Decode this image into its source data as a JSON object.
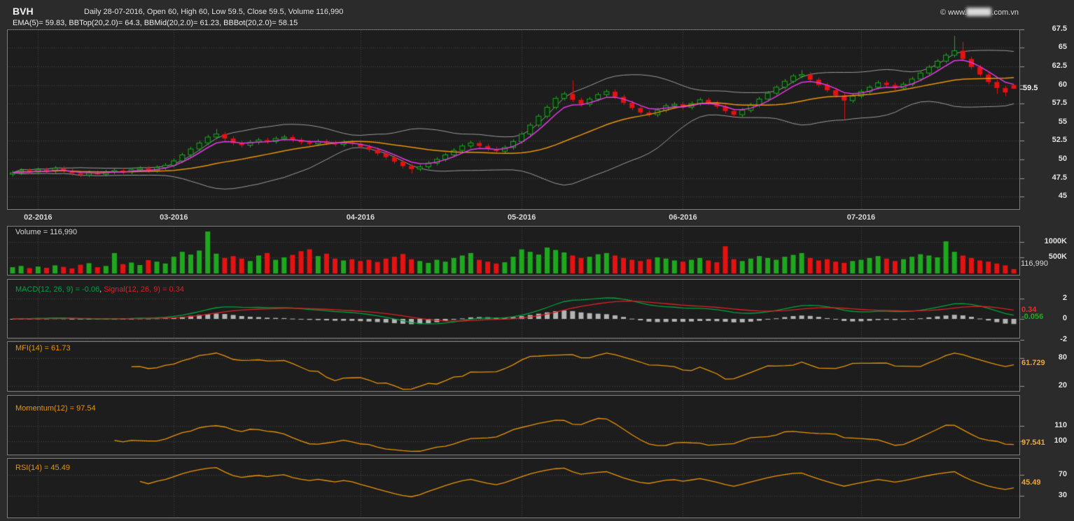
{
  "header": {
    "symbol": "BVH",
    "summary": "Daily 28-07-2016, Open 60, High 60, Low 59.5, Close 59.5, Volume 116,990",
    "copyright": {
      "prefix": "© www.",
      "suffix": ".com.vn",
      "middle_redacted": true
    }
  },
  "panels": {
    "price": {
      "legend": "EMA(5)= 59.83, BBTop(20,2.0)= 64.3, BBMid(20,2.0)= 61.23, BBBot(20,2.0)= 58.15",
      "last_label": "59.5"
    },
    "volume": {
      "legend": "Volume = 116,990",
      "last_label": "116,990"
    },
    "macd": {
      "legend_macd": "MACD(12, 26, 9) = -0.06",
      "legend_sep": ", ",
      "legend_signal": "Signal(12, 26, 9) = 0.34",
      "signal_last_label": "0.34",
      "macd_last_label": "-0.056"
    },
    "mfi": {
      "legend": "MFI(14) = 61.73",
      "last_label": "61.729"
    },
    "momentum": {
      "legend": "Momentum(12) = 97.54",
      "last_label": "97.541"
    },
    "rsi": {
      "legend": "RSI(14) = 45.49",
      "last_label": "45.49"
    }
  },
  "colors": {
    "page_bg": "#2b2b2b",
    "panel_bg": "#1d1d1d",
    "border": "#7e7e7e",
    "grid": "#454545",
    "up": "#1fa81f",
    "up_fill": "#0e2912",
    "down": "#e51212",
    "ema5": "#e23ae2",
    "bb_band": "#9b9b9b",
    "bb_mid": "#e8940a",
    "macd_line": "#00a33e",
    "signal_line": "#dd2222",
    "histogram": "#b4b4b4",
    "indicator_line": "#e8940a",
    "axis_text": "#e2e2e2",
    "tickmark": "#9a9a9a",
    "last_price_tick": "#f0f0f0"
  },
  "chart_data": {
    "type": "candlestick",
    "title": "BVH Daily with EMA(5), Bollinger(20,2.0), Volume, MACD(12,26,9), MFI(14), Momentum(12), RSI(14)",
    "as_of": "28-07-2016",
    "last_bar": {
      "open": 60,
      "high": 60,
      "low": 59.5,
      "close": 59.5,
      "volume": 116990
    },
    "indicator_values": {
      "ema5": 59.83,
      "bbtop": 64.3,
      "bbmid": 61.23,
      "bbbot": 58.15,
      "macd": -0.06,
      "signal": 0.34,
      "mfi14": 61.729,
      "momentum12": 97.541,
      "rsi14": 45.49
    },
    "price_axis": {
      "ticks": [
        67.5,
        65,
        62.5,
        60,
        57.5,
        55,
        52.5,
        50,
        47.5,
        45
      ],
      "range": [
        43.2,
        67.6
      ],
      "last": 59.5
    },
    "volume_axis": {
      "ticks_k": [
        1000,
        500
      ],
      "tick_labels": [
        "1000K",
        "500K"
      ]
    },
    "macd_axis": {
      "ticks": [
        2,
        0,
        -2
      ]
    },
    "mfi_axis": {
      "ticks": [
        80,
        20
      ]
    },
    "momentum_axis": {
      "ticks": [
        110,
        100
      ]
    },
    "rsi_axis": {
      "ticks": [
        70,
        30
      ]
    },
    "months": [
      {
        "label": "02-2016",
        "bar": 3
      },
      {
        "label": "03-2016",
        "bar": 19
      },
      {
        "label": "04-2016",
        "bar": 41
      },
      {
        "label": "05-2016",
        "bar": 60
      },
      {
        "label": "06-2016",
        "bar": 79
      },
      {
        "label": "07-2016",
        "bar": 100
      }
    ],
    "open": [
      48.0,
      48.2,
      48.5,
      48.3,
      48.6,
      48.4,
      48.8,
      48.5,
      48.1,
      47.9,
      48.2,
      48.0,
      48.3,
      48.5,
      48.3,
      48.6,
      48.8,
      48.5,
      48.9,
      49.2,
      49.8,
      50.6,
      51.4,
      52.2,
      53.0,
      53.4,
      52.8,
      52.2,
      51.9,
      52.3,
      52.6,
      52.4,
      52.8,
      53.0,
      52.6,
      52.3,
      52.1,
      52.4,
      52.2,
      52.0,
      52.3,
      52.1,
      51.7,
      51.3,
      50.8,
      50.3,
      49.7,
      49.1,
      48.7,
      49.0,
      49.5,
      50.0,
      50.6,
      51.2,
      51.8,
      52.2,
      51.8,
      51.4,
      51.1,
      51.6,
      52.4,
      53.4,
      54.6,
      55.8,
      57.0,
      58.2,
      58.8,
      58.0,
      57.4,
      58.1,
      58.7,
      59.1,
      58.4,
      57.6,
      56.9,
      56.3,
      56.0,
      56.6,
      57.2,
      57.4,
      57.0,
      57.5,
      58.0,
      57.6,
      57.1,
      56.5,
      56.0,
      56.6,
      57.3,
      58.1,
      58.9,
      59.7,
      60.5,
      61.2,
      61.4,
      60.7,
      60.0,
      59.3,
      58.6,
      57.9,
      58.5,
      59.1,
      59.7,
      60.3,
      60.0,
      59.6,
      60.1,
      60.8,
      61.6,
      62.4,
      63.2,
      64.0,
      64.6,
      63.5,
      62.4,
      61.4,
      60.4,
      59.6,
      60.0
    ],
    "high": [
      48.5,
      48.8,
      48.8,
      48.9,
      48.9,
      49.1,
      49.1,
      48.8,
      48.4,
      48.5,
      48.5,
      48.6,
      48.8,
      48.8,
      48.9,
      49.1,
      49.1,
      49.2,
      49.5,
      50.1,
      50.9,
      51.7,
      52.5,
      53.3,
      54.1,
      53.7,
      53.1,
      52.5,
      52.6,
      52.9,
      52.9,
      53.1,
      53.3,
      53.3,
      52.9,
      52.6,
      52.7,
      52.7,
      52.5,
      52.6,
      52.6,
      52.4,
      52.0,
      51.6,
      51.1,
      50.6,
      50.0,
      49.4,
      49.3,
      49.8,
      50.3,
      50.9,
      51.5,
      52.1,
      52.5,
      52.5,
      52.1,
      51.7,
      51.9,
      52.7,
      53.7,
      54.9,
      56.1,
      57.3,
      58.5,
      59.1,
      60.6,
      58.3,
      58.4,
      59.0,
      59.4,
      59.4,
      58.7,
      57.9,
      57.2,
      56.6,
      56.9,
      57.5,
      57.7,
      57.7,
      57.8,
      58.3,
      58.3,
      57.9,
      57.4,
      56.8,
      56.9,
      57.6,
      58.4,
      59.2,
      60.0,
      60.8,
      61.5,
      62.0,
      61.7,
      61.0,
      60.3,
      59.6,
      58.9,
      58.8,
      59.4,
      60.0,
      60.6,
      60.6,
      60.3,
      60.4,
      61.1,
      61.9,
      62.7,
      63.5,
      64.3,
      66.6,
      65.8,
      63.8,
      62.7,
      61.7,
      60.7,
      59.9,
      60.0
    ],
    "low": [
      47.7,
      47.9,
      48.0,
      48.0,
      48.1,
      48.1,
      48.2,
      47.8,
      47.6,
      47.6,
      47.7,
      47.7,
      48.0,
      48.0,
      48.0,
      48.3,
      48.2,
      48.2,
      48.6,
      48.9,
      49.5,
      50.3,
      51.1,
      51.9,
      52.7,
      52.5,
      51.9,
      51.6,
      51.6,
      52.0,
      52.1,
      52.1,
      52.5,
      52.3,
      52.0,
      51.8,
      51.8,
      51.9,
      51.7,
      51.7,
      51.8,
      51.4,
      51.0,
      50.5,
      50.0,
      49.4,
      48.8,
      48.1,
      48.4,
      48.7,
      49.2,
      49.7,
      50.3,
      50.9,
      51.5,
      51.5,
      51.1,
      50.8,
      50.8,
      51.3,
      52.1,
      53.1,
      54.3,
      55.5,
      56.7,
      57.9,
      57.7,
      57.1,
      57.1,
      57.8,
      58.4,
      58.1,
      57.3,
      56.6,
      56.0,
      55.7,
      55.7,
      56.3,
      56.9,
      56.7,
      56.7,
      57.2,
      57.3,
      56.8,
      56.2,
      55.7,
      55.7,
      56.3,
      57.0,
      57.8,
      58.6,
      59.4,
      60.2,
      60.9,
      60.4,
      59.7,
      59.0,
      58.3,
      55.4,
      57.6,
      58.2,
      58.8,
      59.4,
      59.7,
      59.3,
      59.3,
      59.8,
      60.5,
      61.3,
      62.1,
      62.9,
      63.7,
      63.2,
      62.1,
      61.1,
      60.1,
      58.8,
      58.5,
      59.5
    ],
    "close": [
      48.2,
      48.5,
      48.3,
      48.6,
      48.4,
      48.8,
      48.5,
      48.1,
      47.9,
      48.2,
      48.0,
      48.3,
      48.5,
      48.3,
      48.6,
      48.8,
      48.5,
      48.9,
      49.2,
      49.8,
      50.6,
      51.4,
      52.2,
      53.0,
      53.4,
      52.8,
      52.2,
      51.9,
      52.3,
      52.6,
      52.4,
      52.8,
      53.0,
      52.6,
      52.3,
      52.1,
      52.4,
      52.2,
      52.0,
      52.3,
      52.1,
      51.7,
      51.3,
      50.8,
      50.3,
      49.7,
      49.1,
      48.7,
      49.0,
      49.5,
      50.0,
      50.6,
      51.2,
      51.8,
      52.2,
      51.8,
      51.4,
      51.1,
      51.6,
      52.4,
      53.4,
      54.6,
      55.8,
      57.0,
      58.2,
      58.8,
      58.0,
      57.4,
      58.1,
      58.7,
      59.1,
      58.4,
      57.6,
      56.9,
      56.3,
      56.0,
      56.6,
      57.2,
      57.4,
      57.0,
      57.5,
      58.0,
      57.6,
      57.1,
      56.5,
      56.0,
      56.6,
      57.3,
      58.1,
      58.9,
      59.7,
      60.5,
      61.2,
      61.4,
      60.7,
      60.0,
      59.3,
      58.6,
      57.9,
      58.5,
      59.1,
      59.7,
      60.3,
      60.0,
      59.6,
      60.1,
      60.8,
      61.6,
      62.4,
      63.2,
      64.0,
      64.6,
      63.5,
      62.4,
      61.4,
      60.4,
      59.6,
      59.0,
      59.5
    ],
    "volume_k": [
      180,
      220,
      150,
      200,
      160,
      240,
      190,
      140,
      260,
      310,
      180,
      220,
      640,
      280,
      330,
      250,
      410,
      360,
      300,
      520,
      680,
      590,
      720,
      1340,
      620,
      480,
      540,
      460,
      380,
      560,
      640,
      420,
      500,
      580,
      700,
      760,
      540,
      620,
      460,
      400,
      440,
      380,
      420,
      350,
      460,
      520,
      610,
      440,
      380,
      320,
      420,
      360,
      480,
      560,
      640,
      420,
      360,
      300,
      340,
      520,
      760,
      680,
      590,
      820,
      740,
      660,
      560,
      480,
      520,
      600,
      640,
      560,
      480,
      420,
      380,
      440,
      500,
      460,
      400,
      360,
      420,
      480,
      400,
      340,
      860,
      440,
      380,
      460,
      540,
      480,
      420,
      520,
      580,
      640,
      480,
      400,
      440,
      360,
      320,
      380,
      420,
      480,
      540,
      460,
      380,
      440,
      520,
      600,
      560,
      500,
      1020,
      680,
      560,
      480,
      400,
      360,
      300,
      240,
      117
    ]
  }
}
